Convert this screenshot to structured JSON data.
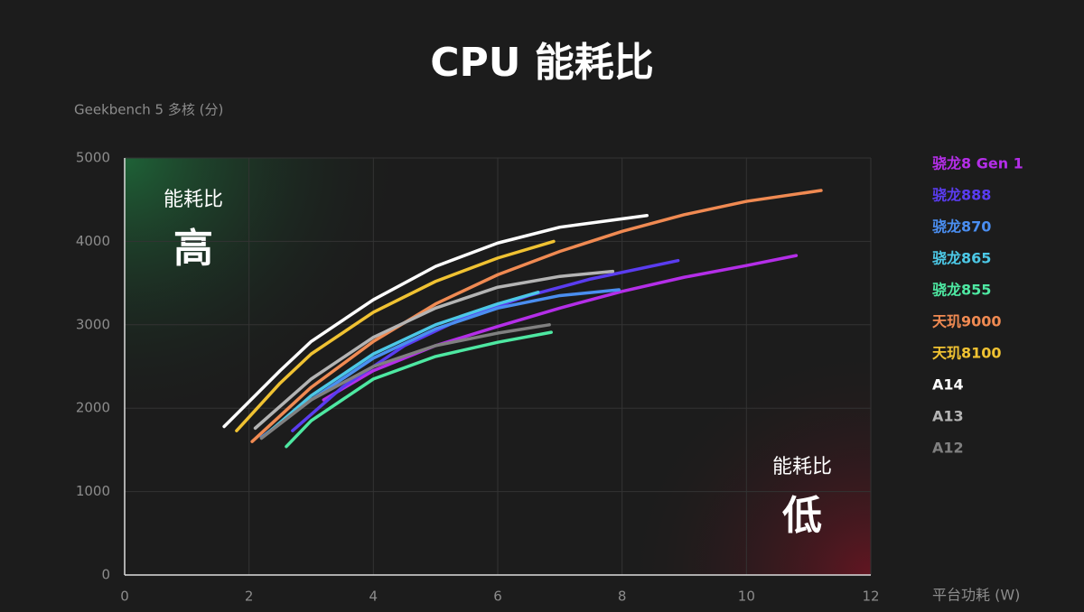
{
  "chart_data": {
    "type": "line",
    "title": "CPU 能耗比",
    "y_label": "Geekbench 5 多核 (分)",
    "x_label": "平台功耗 (W)",
    "annotations": [
      {
        "text": "能耗比",
        "big": "高"
      },
      {
        "text": "能耗比",
        "big": "低"
      }
    ],
    "xlim": [
      0,
      12
    ],
    "xticks": [
      0,
      2,
      4,
      6,
      8,
      10,
      12
    ],
    "ylim": [
      0,
      5000
    ],
    "yticks": [
      0,
      1000,
      2000,
      3000,
      4000,
      5000
    ],
    "grid": true,
    "legend": "right",
    "series": [
      {
        "name": "骁龙8 Gen 1",
        "color": "#b42ee8",
        "x": [
          3.2,
          4,
          5,
          6,
          7,
          8,
          9,
          10,
          10.8
        ],
        "values": [
          2100,
          2450,
          2750,
          2980,
          3200,
          3400,
          3570,
          3710,
          3830
        ]
      },
      {
        "name": "骁龙888",
        "color": "#5a3cf0",
        "x": [
          2.7,
          3.5,
          4.5,
          5.5,
          6.5,
          7.5,
          8.9
        ],
        "values": [
          1730,
          2250,
          2750,
          3100,
          3350,
          3550,
          3770
        ]
      },
      {
        "name": "骁龙870",
        "color": "#4a8ef0",
        "x": [
          2.2,
          3,
          4,
          5,
          6,
          7,
          7.95
        ],
        "values": [
          1650,
          2100,
          2600,
          2950,
          3200,
          3350,
          3420
        ]
      },
      {
        "name": "骁龙865",
        "color": "#4cc8e6",
        "x": [
          2.3,
          3,
          4,
          5,
          6,
          6.65
        ],
        "values": [
          1700,
          2150,
          2650,
          3000,
          3250,
          3390
        ]
      },
      {
        "name": "骁龙855",
        "color": "#4ee8a2",
        "x": [
          2.6,
          3,
          4,
          5,
          6,
          6.86
        ],
        "values": [
          1540,
          1850,
          2350,
          2620,
          2790,
          2910
        ]
      },
      {
        "name": "天玑9000",
        "color": "#f08a52",
        "x": [
          2.05,
          3,
          4,
          5,
          6,
          7,
          8,
          9,
          10,
          11.2
        ],
        "values": [
          1600,
          2250,
          2800,
          3250,
          3600,
          3880,
          4120,
          4320,
          4480,
          4610
        ]
      },
      {
        "name": "天玑8100",
        "color": "#f0c232",
        "x": [
          1.8,
          2.5,
          3,
          4,
          5,
          6,
          6.9
        ],
        "values": [
          1730,
          2300,
          2650,
          3150,
          3520,
          3800,
          4000
        ]
      },
      {
        "name": "A14",
        "color": "#ffffff",
        "x": [
          1.6,
          2.5,
          3,
          4,
          5,
          6,
          7,
          8.4
        ],
        "values": [
          1780,
          2450,
          2800,
          3300,
          3700,
          3980,
          4170,
          4310
        ]
      },
      {
        "name": "A13",
        "color": "#b4b4b4",
        "x": [
          2.1,
          3,
          4,
          5,
          6,
          7,
          7.85
        ],
        "values": [
          1760,
          2350,
          2850,
          3200,
          3450,
          3580,
          3640
        ]
      },
      {
        "name": "A12",
        "color": "#808080",
        "x": [
          2.2,
          3,
          4,
          5,
          6,
          6.83
        ],
        "values": [
          1640,
          2100,
          2500,
          2750,
          2900,
          3000
        ]
      }
    ]
  }
}
